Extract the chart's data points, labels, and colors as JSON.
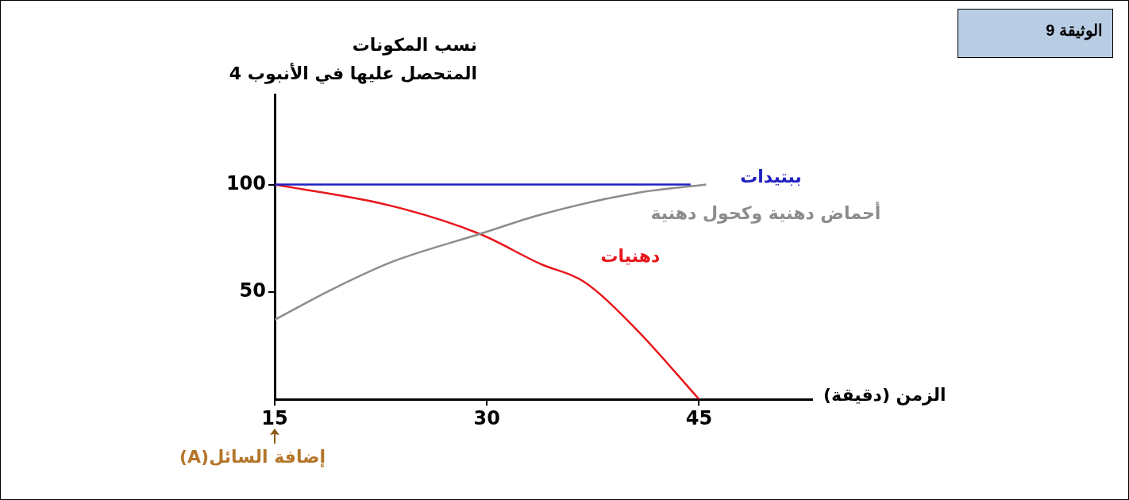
{
  "chart_data": {
    "type": "line",
    "title": "الوثيقة 9",
    "xlabel": "الزمن (دقيقة)",
    "ylabel": "نسب المكونات\nالمتحصل عليها في الأنبوب 4",
    "xlim": [
      15,
      53
    ],
    "xticks": [
      15,
      30,
      45
    ],
    "ylim": [
      0,
      142
    ],
    "yticks": [
      50,
      100
    ],
    "series": [
      {
        "name": "ببتيدات",
        "color": "#2020c0",
        "x": [
          15,
          44.4
        ],
        "values": [
          100,
          100
        ]
      },
      {
        "name": "أحماض دهنية وكحول دهنية",
        "color": "#8c8c8c",
        "x": [
          15,
          19,
          23.3,
          29.5,
          33.8,
          40.5,
          45.5
        ],
        "values": [
          37,
          51,
          64,
          77,
          86,
          96,
          100
        ]
      },
      {
        "name": "دهنيات",
        "color": "#e8161b",
        "x": [
          15,
          23.3,
          29.5,
          33.8,
          36.8,
          40.5,
          45
        ],
        "values": [
          100,
          90,
          77,
          63,
          55,
          33,
          0
        ]
      }
    ],
    "annotations": [
      "إضافة السائل(A)"
    ],
    "grid": false,
    "legend": false,
    "marker": "none",
    "line_style": "solid"
  }
}
